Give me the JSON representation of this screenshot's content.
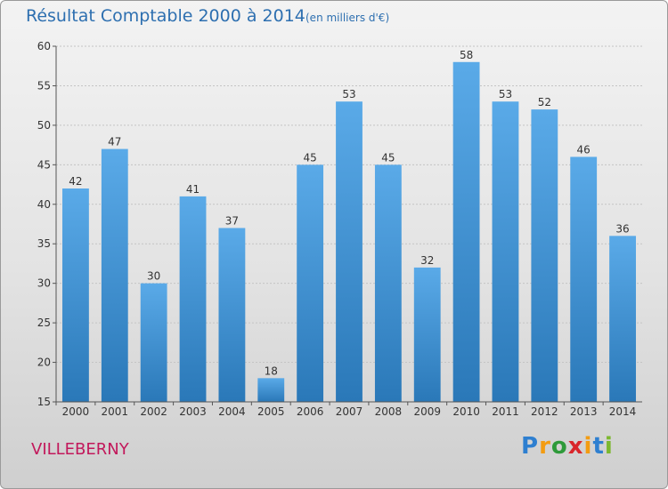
{
  "chart_data": {
    "type": "bar",
    "title": "Résultat Comptable 2000 à 2014",
    "subtitle": "(en milliers d'€)",
    "categories": [
      "2000",
      "2001",
      "2002",
      "2003",
      "2004",
      "2005",
      "2006",
      "2007",
      "2008",
      "2009",
      "2010",
      "2011",
      "2012",
      "2013",
      "2014"
    ],
    "values": [
      42,
      47,
      30,
      41,
      37,
      18,
      45,
      53,
      45,
      32,
      58,
      53,
      52,
      46,
      36
    ],
    "ylim": [
      15,
      60
    ],
    "yticks": [
      15,
      20,
      25,
      30,
      35,
      40,
      45,
      50,
      55,
      60
    ],
    "grid": true,
    "xlabel": "",
    "ylabel": "",
    "bar_color_top": "#5aaae8",
    "bar_color_bottom": "#2a78b8"
  },
  "place_label": "VILLEBERNY",
  "logo": {
    "letters": [
      "P",
      "r",
      "o",
      "x",
      "i",
      "t",
      "i"
    ],
    "colors": [
      "#2e7fd0",
      "#f39c12",
      "#2e9a3a",
      "#d9262b",
      "#f39c12",
      "#2e7fd0",
      "#7cb82f"
    ]
  }
}
